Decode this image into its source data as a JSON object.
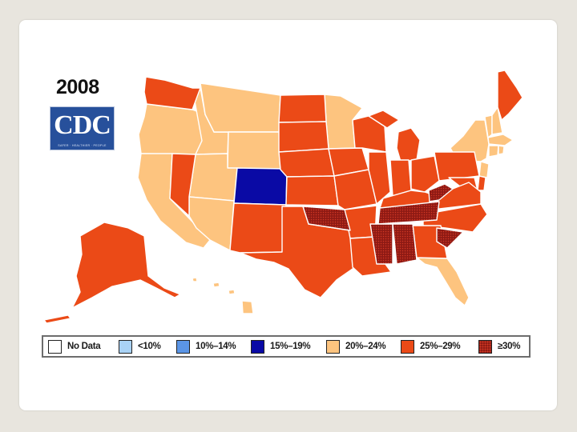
{
  "map": {
    "year": "2008",
    "logo": {
      "text": "CDC",
      "tagline": "SAFER · HEALTHIER · PEOPLE"
    },
    "legend": [
      {
        "label": "No Data",
        "color": "#ffffff"
      },
      {
        "label": "<10%",
        "color": "#a9d2f5"
      },
      {
        "label": "10%–14%",
        "color": "#5b95e6"
      },
      {
        "label": "15%–19%",
        "color": "#0a0aa5"
      },
      {
        "label": "20%–24%",
        "color": "#fdc47f"
      },
      {
        "label": "25%–29%",
        "color": "#eb4a17"
      },
      {
        "label": "≥30%",
        "color": "#8e1a14",
        "pattern": "dotted"
      }
    ],
    "state_categories": {
      "15%–19%": [
        "CO"
      ],
      "20%–24%": [
        "CA",
        "OR",
        "ID",
        "MT",
        "WY",
        "UT",
        "AZ",
        "MN",
        "NY",
        "VT",
        "NH",
        "MA",
        "CT",
        "RI",
        "NJ",
        "FL",
        "HI"
      ],
      "25%–29%": [
        "WA",
        "NV",
        "NM",
        "TX",
        "ND",
        "SD",
        "NE",
        "KS",
        "IA",
        "MO",
        "AR",
        "LA",
        "WI",
        "IL",
        "MI",
        "IN",
        "OH",
        "KY",
        "GA",
        "NC",
        "VA",
        "PA",
        "ME",
        "MD",
        "DE",
        "AK"
      ],
      "≥30%": [
        "OK",
        "TN",
        "MS",
        "AL",
        "SC",
        "WV"
      ]
    }
  }
}
